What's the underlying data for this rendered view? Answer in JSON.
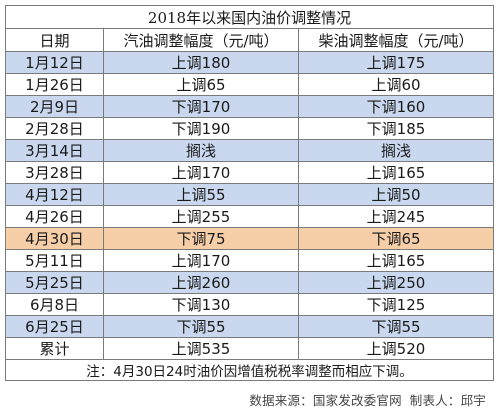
{
  "title": "2018年以来国内油价调整情况",
  "headers": {
    "date": "日期",
    "gasoline": "汽油调整幅度（元/吨）",
    "diesel": "柴油调整幅度（元/吨）"
  },
  "rows": [
    {
      "date": "1月12日",
      "gasoline": "上调180",
      "diesel": "上调175"
    },
    {
      "date": "1月26日",
      "gasoline": "上调65",
      "diesel": "上调60"
    },
    {
      "date": "2月9日",
      "gasoline": "下调170",
      "diesel": "下调160"
    },
    {
      "date": "2月28日",
      "gasoline": "下调190",
      "diesel": "下调185"
    },
    {
      "date": "3月14日",
      "gasoline": "搁浅",
      "diesel": "搁浅"
    },
    {
      "date": "3月28日",
      "gasoline": "上调170",
      "diesel": "上调165"
    },
    {
      "date": "4月12日",
      "gasoline": "上调55",
      "diesel": "上调50"
    },
    {
      "date": "4月26日",
      "gasoline": "上调255",
      "diesel": "上调245"
    },
    {
      "date": "4月30日",
      "gasoline": "下调75",
      "diesel": "下调65"
    },
    {
      "date": "5月11日",
      "gasoline": "上调170",
      "diesel": "上调165"
    },
    {
      "date": "5月25日",
      "gasoline": "上调260",
      "diesel": "上调250"
    },
    {
      "date": "6月8日",
      "gasoline": "下调130",
      "diesel": "下调125"
    },
    {
      "date": "6月25日",
      "gasoline": "下调55",
      "diesel": "下调55"
    }
  ],
  "total": {
    "date": "累计",
    "gasoline": "上调535",
    "diesel": "上调520"
  },
  "note": "注：4月30日24时油价因增值税税率调整而相应下调。",
  "source": {
    "data_source": "数据来源：国家发改委官网",
    "maker": "制表人：邱宇"
  },
  "colors": {
    "row_blue": "#c9d8ee",
    "row_highlight": "#f6cfa9",
    "border": "#7a7a7a"
  }
}
